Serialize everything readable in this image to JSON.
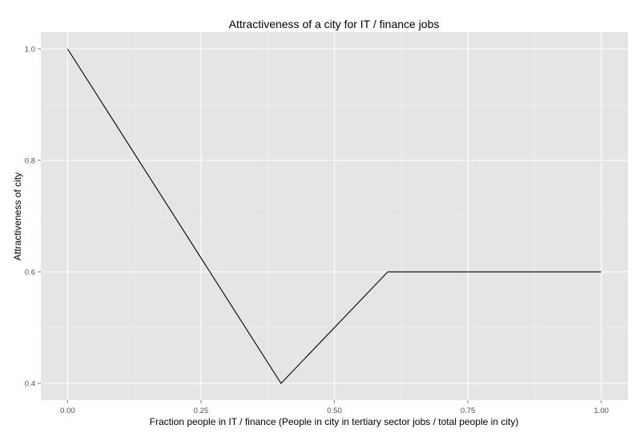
{
  "chart_data": {
    "type": "line",
    "title": "Attractiveness of a city for IT / finance jobs",
    "xlabel": "Fraction people in IT / finance (People in city in tertiary sector jobs / total people in city)",
    "ylabel": "Attractiveness of city",
    "xlim": [
      -0.05,
      1.05
    ],
    "ylim": [
      0.37,
      1.03
    ],
    "x_ticks": [
      0.0,
      0.25,
      0.5,
      0.75,
      1.0
    ],
    "x_tick_labels": [
      "0.00",
      "0.25",
      "0.50",
      "0.75",
      "1.00"
    ],
    "y_ticks": [
      0.4,
      0.6,
      0.8,
      1.0
    ],
    "y_tick_labels": [
      "0.4",
      "0.6",
      "0.8",
      "1.0"
    ],
    "grid": true,
    "legend": "none",
    "series": [
      {
        "x": [
          0.0,
          0.4,
          0.6,
          1.0
        ],
        "y": [
          1.0,
          0.4,
          0.6,
          0.6
        ],
        "color": "#000000"
      }
    ]
  },
  "colors": {
    "panel_background": "#e5e5e5",
    "grid_major": "#ffffff",
    "grid_minor": "#f2f2f2",
    "line": "#000000",
    "tick_mark": "#7f7f7f"
  }
}
